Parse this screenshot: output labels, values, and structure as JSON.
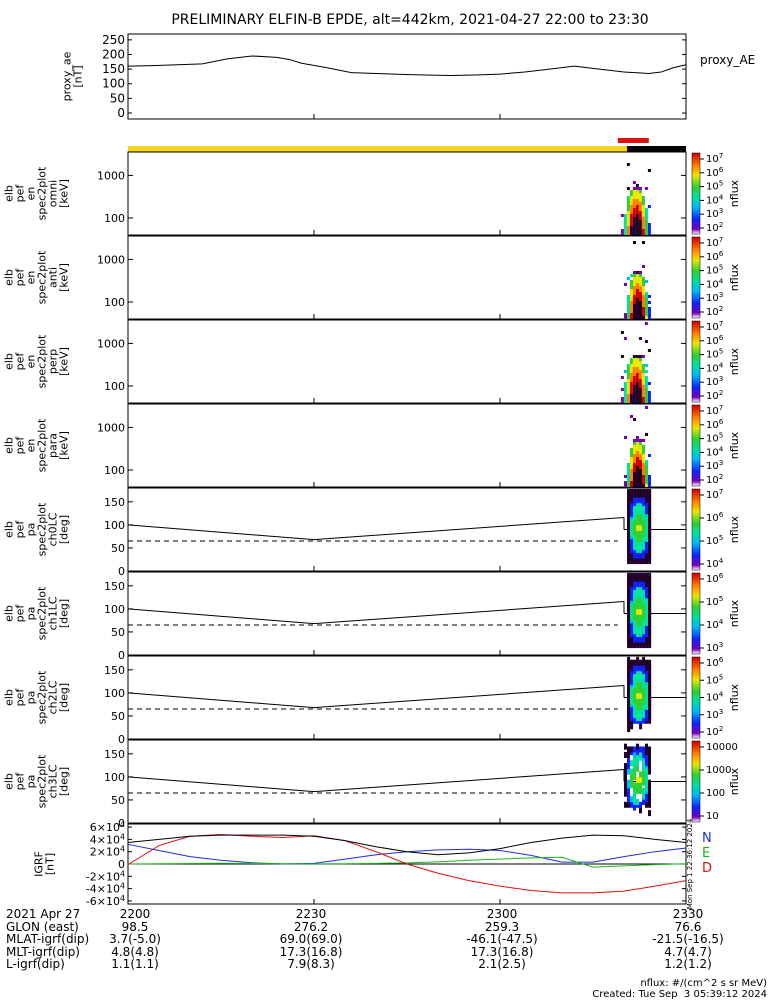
{
  "title": "PRELIMINARY ELFIN-B EPDE, alt=442km, 2021-04-27 22:00 to 23:30",
  "colors": {
    "orbit_day": "#f4d21c",
    "orbit_night": "#000000",
    "science_zone": "#e01010",
    "bx": "#1a2ee0",
    "by": "#18b818",
    "bz": "#e01010",
    "mag_total": "#000000"
  },
  "chart_data": [
    {
      "type": "line",
      "panel": "proxy_ae",
      "ylabel": "proxy_ae\n[nT]",
      "legend": "proxy_AE",
      "yticks": [
        "250",
        "200",
        "150",
        "100",
        "50",
        "0"
      ],
      "ylim": [
        0,
        270
      ],
      "x_minutes": [
        0,
        4,
        8,
        12,
        16,
        20,
        24,
        26,
        28,
        32,
        36,
        40,
        44,
        48,
        52,
        56,
        60,
        64,
        68,
        72,
        76,
        80,
        84,
        86,
        88,
        90
      ],
      "values": [
        160,
        162,
        165,
        168,
        185,
        195,
        190,
        183,
        170,
        155,
        138,
        135,
        132,
        130,
        128,
        130,
        133,
        140,
        150,
        160,
        150,
        140,
        135,
        140,
        155,
        165
      ]
    },
    {
      "type": "heatmap",
      "panel": "omni",
      "ylabel": "elb\npef\nen\nspec2plot\nomni\n[keV]",
      "yticks": [
        "1000",
        "100"
      ],
      "colorbar_label": "nflux",
      "colorbar_ticks": [
        "10^7",
        "10^6",
        "10^5",
        "10^4",
        "10^3",
        "10^2"
      ],
      "x_minutes_range": [
        79.5,
        84.0
      ]
    },
    {
      "type": "heatmap",
      "panel": "anti",
      "ylabel": "elb\npef\nen\nspec2plot\nanti\n[keV]",
      "yticks": [
        "1000",
        "100"
      ],
      "colorbar_label": "nflux",
      "colorbar_ticks": [
        "10^7",
        "10^6",
        "10^5",
        "10^4",
        "10^3",
        "10^2"
      ],
      "x_minutes_range": [
        80.0,
        84.0
      ]
    },
    {
      "type": "heatmap",
      "panel": "perp",
      "ylabel": "elb\npef\nen\nspec2plot\nperp\n[keV]",
      "yticks": [
        "1000",
        "100"
      ],
      "colorbar_label": "nflux",
      "colorbar_ticks": [
        "10^7",
        "10^6",
        "10^5",
        "10^4",
        "10^3",
        "10^2"
      ],
      "x_minutes_range": [
        79.5,
        84.0
      ]
    },
    {
      "type": "heatmap",
      "panel": "para",
      "ylabel": "elb\npef\nen\nspec2plot\npara\n[keV]",
      "yticks": [
        "1000",
        "100"
      ],
      "colorbar_label": "nflux",
      "colorbar_ticks": [
        "10^7",
        "10^6",
        "10^5",
        "10^4",
        "10^3",
        "10^2"
      ],
      "x_minutes_range": [
        80.0,
        84.0
      ]
    },
    {
      "type": "heatmap",
      "panel": "ch0LC",
      "ylabel": "elb\npef\npa\nspec2plot\nch0LC\n[deg]",
      "yticks": [
        "150",
        "100",
        "50",
        "0"
      ],
      "ylim": [
        0,
        180
      ],
      "colorbar_label": "nflux",
      "colorbar_ticks": [
        "10^7",
        "10^6",
        "10^5",
        "10^4"
      ],
      "x_minutes_range": [
        80.5,
        84.0
      ]
    },
    {
      "type": "heatmap",
      "panel": "ch1LC",
      "ylabel": "elb\npef\npa\nspec2plot\nch1LC\n[deg]",
      "yticks": [
        "150",
        "100",
        "50",
        "0"
      ],
      "ylim": [
        0,
        180
      ],
      "colorbar_label": "nflux",
      "colorbar_ticks": [
        "10^6",
        "10^5",
        "10^4",
        "10^3"
      ],
      "x_minutes_range": [
        80.5,
        84.0
      ]
    },
    {
      "type": "heatmap",
      "panel": "ch2LC",
      "ylabel": "elb\npef\npa\nspec2plot\nch2LC\n[deg]",
      "yticks": [
        "150",
        "100",
        "50",
        "0"
      ],
      "ylim": [
        0,
        180
      ],
      "colorbar_label": "nflux",
      "colorbar_ticks": [
        "10^6",
        "10^5",
        "10^4",
        "10^3",
        "10^2"
      ],
      "x_minutes_range": [
        80.5,
        84.0
      ]
    },
    {
      "type": "heatmap",
      "panel": "ch3LC",
      "ylabel": "elb\npef\npa\nspec2plot\nch3LC\n[deg]",
      "yticks": [
        "150",
        "100",
        "50",
        "0"
      ],
      "ylim": [
        0,
        180
      ],
      "colorbar_label": "nflux",
      "colorbar_ticks": [
        "10000",
        "1000",
        "100",
        "10"
      ],
      "x_minutes_range": [
        80.0,
        84.0
      ]
    },
    {
      "type": "line",
      "panel": "IGRF",
      "ylabel": "IGRF\n[nT]",
      "yticks": [
        "6×10^4",
        "4×10^4",
        "2×10^4",
        "0",
        "-2×10^4",
        "-4×10^4",
        "-6×10^4"
      ],
      "ylim": [
        -65000,
        65000
      ],
      "legend": [
        "N",
        "E",
        "D"
      ],
      "side_note": "Mon Sep 1 22:36:12 2024",
      "x_minutes": [
        0,
        5,
        10,
        15,
        20,
        25,
        30,
        35,
        40,
        45,
        50,
        55,
        60,
        65,
        70,
        75,
        80,
        85,
        90
      ],
      "series": [
        {
          "name": "N",
          "values": [
            32000,
            22000,
            12000,
            6000,
            2000,
            200,
            1000,
            8000,
            15000,
            20000,
            23000,
            24000,
            22000,
            14000,
            3000,
            3000,
            12000,
            20000,
            26000
          ]
        },
        {
          "name": "E",
          "values": [
            0,
            400,
            900,
            1200,
            900,
            400,
            200,
            500,
            1000,
            1800,
            3500,
            6000,
            8000,
            10000,
            11000,
            -5000,
            -3000,
            -1000,
            500
          ]
        },
        {
          "name": "D",
          "values": [
            -1000,
            30000,
            45000,
            48000,
            45000,
            43000,
            46000,
            38000,
            20000,
            0,
            -15000,
            -27000,
            -36000,
            -43000,
            -47000,
            -47000,
            -44000,
            -36000,
            -27000
          ]
        },
        {
          "name": "",
          "values": [
            35000,
            40000,
            45000,
            47000,
            47000,
            47000,
            45000,
            38000,
            28000,
            20000,
            15000,
            18000,
            25000,
            35000,
            42000,
            47000,
            46000,
            40000,
            35000
          ]
        }
      ]
    }
  ],
  "footer": {
    "rows": [
      {
        "label": "2021 Apr 27",
        "values": [
          "2200",
          "2230",
          "2300",
          "2330"
        ]
      },
      {
        "label": "GLON (east)",
        "values": [
          "98.5",
          "276.2",
          "259.3",
          "76.6"
        ]
      },
      {
        "label": "MLAT-igrf(dip)",
        "values": [
          "3.7(-5.0)",
          "69.0(69.0)",
          "-46.1(-47.5)",
          "-21.5(-16.5)"
        ]
      },
      {
        "label": "MLT-igrf(dip)",
        "values": [
          "4.8(4.8)",
          "17.3(16.8)",
          "17.3(16.8)",
          "4.7(4.7)"
        ]
      },
      {
        "label": "L-igrf(dip)",
        "values": [
          "1.1(1.1)",
          "7.9(8.3)",
          "2.1(2.5)",
          "1.2(1.2)"
        ]
      }
    ],
    "units_note": "nflux: #/(cm^2 s sr MeV)",
    "created": "Created: Tue Sep  3 05:39:12 2024"
  }
}
